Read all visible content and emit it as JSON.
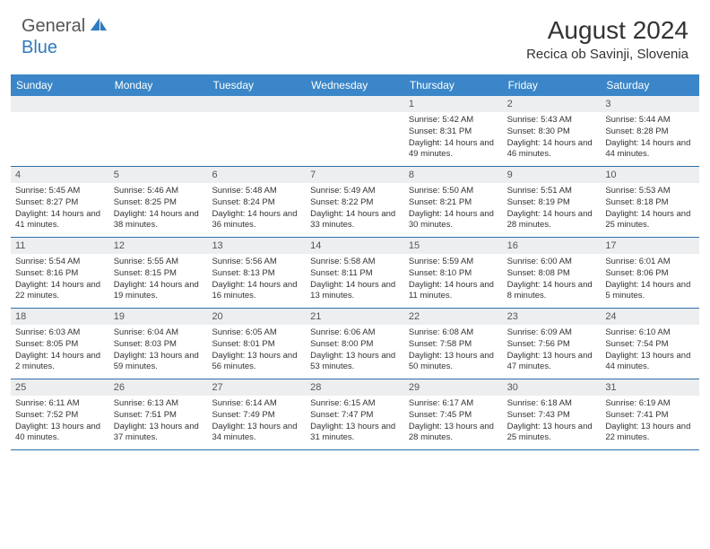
{
  "logo": {
    "general": "General",
    "blue": "Blue"
  },
  "title": "August 2024",
  "location": "Recica ob Savinji, Slovenia",
  "colors": {
    "header_bg": "#3a86c8",
    "header_text": "#ffffff",
    "daynum_bg": "#eceef0",
    "border": "#2f6ea5",
    "logo_blue": "#2f7ac0",
    "text": "#333333"
  },
  "day_names": [
    "Sunday",
    "Monday",
    "Tuesday",
    "Wednesday",
    "Thursday",
    "Friday",
    "Saturday"
  ],
  "weeks": [
    [
      null,
      null,
      null,
      null,
      {
        "n": "1",
        "sr": "5:42 AM",
        "ss": "8:31 PM",
        "dl": "14 hours and 49 minutes."
      },
      {
        "n": "2",
        "sr": "5:43 AM",
        "ss": "8:30 PM",
        "dl": "14 hours and 46 minutes."
      },
      {
        "n": "3",
        "sr": "5:44 AM",
        "ss": "8:28 PM",
        "dl": "14 hours and 44 minutes."
      }
    ],
    [
      {
        "n": "4",
        "sr": "5:45 AM",
        "ss": "8:27 PM",
        "dl": "14 hours and 41 minutes."
      },
      {
        "n": "5",
        "sr": "5:46 AM",
        "ss": "8:25 PM",
        "dl": "14 hours and 38 minutes."
      },
      {
        "n": "6",
        "sr": "5:48 AM",
        "ss": "8:24 PM",
        "dl": "14 hours and 36 minutes."
      },
      {
        "n": "7",
        "sr": "5:49 AM",
        "ss": "8:22 PM",
        "dl": "14 hours and 33 minutes."
      },
      {
        "n": "8",
        "sr": "5:50 AM",
        "ss": "8:21 PM",
        "dl": "14 hours and 30 minutes."
      },
      {
        "n": "9",
        "sr": "5:51 AM",
        "ss": "8:19 PM",
        "dl": "14 hours and 28 minutes."
      },
      {
        "n": "10",
        "sr": "5:53 AM",
        "ss": "8:18 PM",
        "dl": "14 hours and 25 minutes."
      }
    ],
    [
      {
        "n": "11",
        "sr": "5:54 AM",
        "ss": "8:16 PM",
        "dl": "14 hours and 22 minutes."
      },
      {
        "n": "12",
        "sr": "5:55 AM",
        "ss": "8:15 PM",
        "dl": "14 hours and 19 minutes."
      },
      {
        "n": "13",
        "sr": "5:56 AM",
        "ss": "8:13 PM",
        "dl": "14 hours and 16 minutes."
      },
      {
        "n": "14",
        "sr": "5:58 AM",
        "ss": "8:11 PM",
        "dl": "14 hours and 13 minutes."
      },
      {
        "n": "15",
        "sr": "5:59 AM",
        "ss": "8:10 PM",
        "dl": "14 hours and 11 minutes."
      },
      {
        "n": "16",
        "sr": "6:00 AM",
        "ss": "8:08 PM",
        "dl": "14 hours and 8 minutes."
      },
      {
        "n": "17",
        "sr": "6:01 AM",
        "ss": "8:06 PM",
        "dl": "14 hours and 5 minutes."
      }
    ],
    [
      {
        "n": "18",
        "sr": "6:03 AM",
        "ss": "8:05 PM",
        "dl": "14 hours and 2 minutes."
      },
      {
        "n": "19",
        "sr": "6:04 AM",
        "ss": "8:03 PM",
        "dl": "13 hours and 59 minutes."
      },
      {
        "n": "20",
        "sr": "6:05 AM",
        "ss": "8:01 PM",
        "dl": "13 hours and 56 minutes."
      },
      {
        "n": "21",
        "sr": "6:06 AM",
        "ss": "8:00 PM",
        "dl": "13 hours and 53 minutes."
      },
      {
        "n": "22",
        "sr": "6:08 AM",
        "ss": "7:58 PM",
        "dl": "13 hours and 50 minutes."
      },
      {
        "n": "23",
        "sr": "6:09 AM",
        "ss": "7:56 PM",
        "dl": "13 hours and 47 minutes."
      },
      {
        "n": "24",
        "sr": "6:10 AM",
        "ss": "7:54 PM",
        "dl": "13 hours and 44 minutes."
      }
    ],
    [
      {
        "n": "25",
        "sr": "6:11 AM",
        "ss": "7:52 PM",
        "dl": "13 hours and 40 minutes."
      },
      {
        "n": "26",
        "sr": "6:13 AM",
        "ss": "7:51 PM",
        "dl": "13 hours and 37 minutes."
      },
      {
        "n": "27",
        "sr": "6:14 AM",
        "ss": "7:49 PM",
        "dl": "13 hours and 34 minutes."
      },
      {
        "n": "28",
        "sr": "6:15 AM",
        "ss": "7:47 PM",
        "dl": "13 hours and 31 minutes."
      },
      {
        "n": "29",
        "sr": "6:17 AM",
        "ss": "7:45 PM",
        "dl": "13 hours and 28 minutes."
      },
      {
        "n": "30",
        "sr": "6:18 AM",
        "ss": "7:43 PM",
        "dl": "13 hours and 25 minutes."
      },
      {
        "n": "31",
        "sr": "6:19 AM",
        "ss": "7:41 PM",
        "dl": "13 hours and 22 minutes."
      }
    ]
  ],
  "labels": {
    "sunrise": "Sunrise: ",
    "sunset": "Sunset: ",
    "daylight": "Daylight: "
  }
}
